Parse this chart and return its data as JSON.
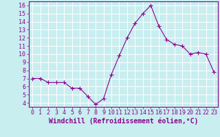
{
  "hours": [
    0,
    1,
    2,
    3,
    4,
    5,
    6,
    7,
    8,
    9,
    10,
    11,
    12,
    13,
    14,
    15,
    16,
    17,
    18,
    19,
    20,
    21,
    22,
    23
  ],
  "values": [
    7.0,
    7.0,
    6.5,
    6.5,
    6.5,
    5.8,
    5.8,
    4.8,
    3.8,
    4.5,
    7.5,
    9.8,
    12.0,
    13.8,
    15.0,
    16.0,
    13.5,
    11.8,
    11.2,
    11.0,
    10.0,
    10.2,
    10.0,
    7.8
  ],
  "line_color": "#8B008B",
  "marker": "+",
  "marker_size": 4,
  "background_color": "#c8eef0",
  "grid_color": "#ffffff",
  "xlabel": "Windchill (Refroidissement éolien,°C)",
  "ylabel": "",
  "title": "",
  "xlim": [
    -0.5,
    23.5
  ],
  "ylim": [
    3.5,
    16.5
  ],
  "yticks": [
    4,
    5,
    6,
    7,
    8,
    9,
    10,
    11,
    12,
    13,
    14,
    15,
    16
  ],
  "xticks": [
    0,
    1,
    2,
    3,
    4,
    5,
    6,
    7,
    8,
    9,
    10,
    11,
    12,
    13,
    14,
    15,
    16,
    17,
    18,
    19,
    20,
    21,
    22,
    23
  ],
  "tick_color": "#8B008B",
  "label_color": "#8B008B",
  "spine_color": "#8B008B",
  "font_size_ticks": 6.0,
  "font_size_xlabel": 7.0
}
